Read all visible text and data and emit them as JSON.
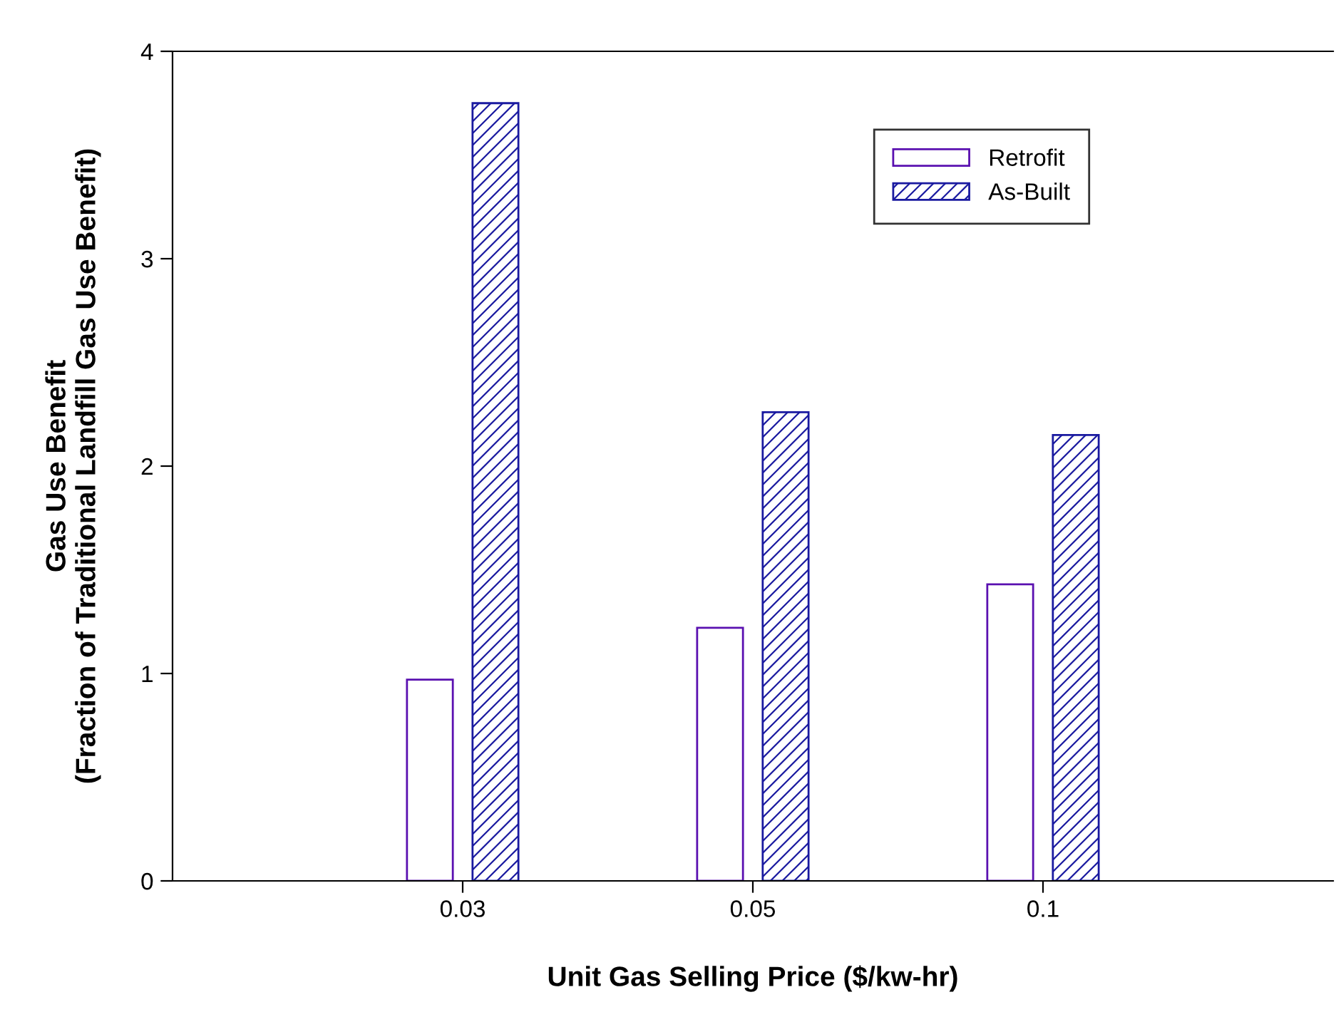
{
  "chart_data": {
    "type": "bar",
    "xlabel": "Unit Gas Selling Price ($/kw-hr)",
    "ylabel": "Gas Use Benefit\n(Fraction of Traditional Landfill Gas Use Benefit)",
    "categories": [
      "0.03",
      "0.05",
      "0.1"
    ],
    "series": [
      {
        "name": "Retrofit",
        "color": "#5a10b0",
        "values": [
          0.97,
          1.22,
          1.43
        ]
      },
      {
        "name": "As-Built",
        "color": "#1a1aa0",
        "values": [
          3.75,
          2.26,
          2.15
        ]
      }
    ],
    "ylim": [
      0,
      4
    ],
    "yticks": [
      0,
      1,
      2,
      3,
      4
    ],
    "grid": false,
    "legend": "top right"
  }
}
